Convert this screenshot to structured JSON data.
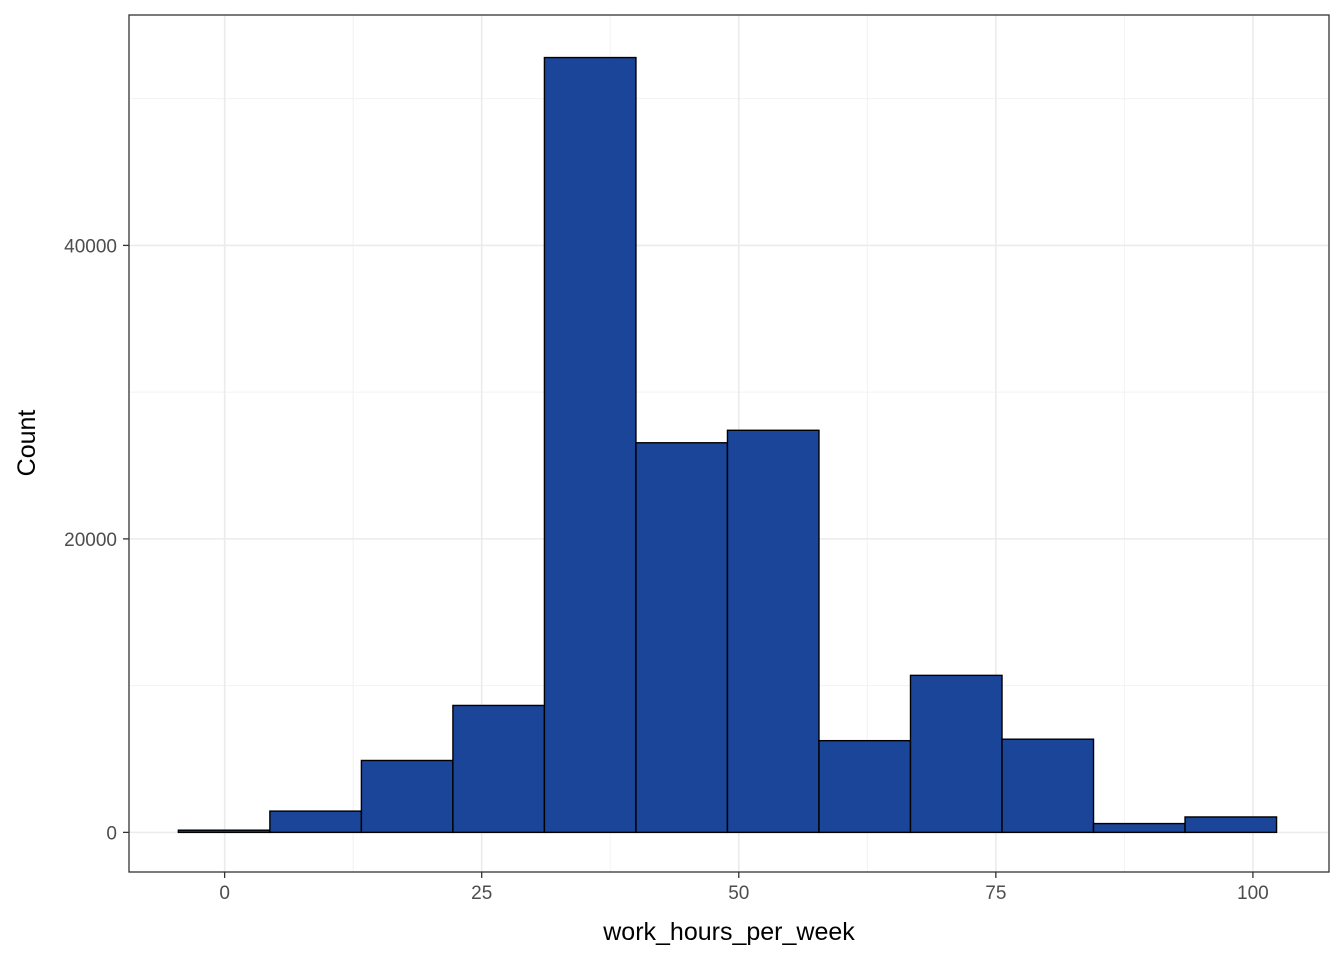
{
  "chart_data": {
    "type": "bar",
    "subtype": "histogram",
    "xlabel": "work_hours_per_week",
    "ylabel": "Count",
    "xlim": [
      -9.3,
      107.4
    ],
    "ylim": [
      -2700,
      55700
    ],
    "x_ticks": [
      0,
      25,
      50,
      75,
      100
    ],
    "y_ticks": [
      0,
      20000,
      40000
    ],
    "bins": [
      {
        "x0": -4.5,
        "x1": 4.4,
        "value": 150
      },
      {
        "x0": 4.4,
        "x1": 13.3,
        "value": 1450
      },
      {
        "x0": 13.3,
        "x1": 22.2,
        "value": 4900
      },
      {
        "x0": 22.2,
        "x1": 31.1,
        "value": 8650
      },
      {
        "x0": 31.1,
        "x1": 40.0,
        "value": 52800
      },
      {
        "x0": 40.0,
        "x1": 48.9,
        "value": 26550
      },
      {
        "x0": 48.9,
        "x1": 57.8,
        "value": 27400
      },
      {
        "x0": 57.8,
        "x1": 66.7,
        "value": 6250
      },
      {
        "x0": 66.7,
        "x1": 75.6,
        "value": 10700
      },
      {
        "x0": 75.6,
        "x1": 84.5,
        "value": 6350
      },
      {
        "x0": 84.5,
        "x1": 93.4,
        "value": 600
      },
      {
        "x0": 93.4,
        "x1": 102.3,
        "value": 1050
      }
    ],
    "grid": true,
    "bar_fill": "#1a4599",
    "bar_stroke": "#000000"
  }
}
